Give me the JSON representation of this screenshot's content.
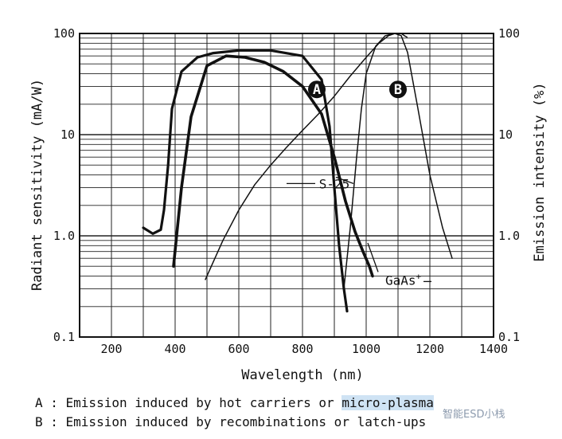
{
  "chart_data": {
    "type": "line",
    "xlabel": "Wavelength (nm)",
    "ylabel_left": "Radiant sensitivity (mA/W)",
    "ylabel_right": "Emission intensity (%)",
    "xlim": [
      100,
      1400
    ],
    "ylim": [
      0.1,
      100
    ],
    "yscale": "log",
    "grid": true,
    "x_ticks": [
      "200",
      "400",
      "600",
      "800",
      "1000",
      "1200",
      "1400"
    ],
    "y_ticks_left": [
      "0.1",
      "1.0",
      "10",
      "100"
    ],
    "y_ticks_right": [
      "0.1",
      "1.0",
      "10",
      "100"
    ],
    "series": [
      {
        "name": "S-25",
        "x": [
          300,
          330,
          355,
          365,
          378,
          390,
          420,
          470,
          520,
          600,
          700,
          800,
          860,
          885,
          900,
          915,
          930,
          940
        ],
        "y": [
          1.2,
          1.05,
          1.15,
          1.8,
          5,
          18,
          42,
          58,
          64,
          68,
          68,
          60,
          35,
          12,
          3,
          0.8,
          0.3,
          0.18
        ]
      },
      {
        "name": "A",
        "x": [
          395,
          420,
          450,
          500,
          560,
          620,
          680,
          740,
          800,
          860,
          900,
          935,
          965,
          990,
          1010,
          1020
        ],
        "y": [
          0.5,
          3,
          15,
          48,
          60,
          58,
          52,
          42,
          30,
          16,
          6,
          2.2,
          1.1,
          0.7,
          0.5,
          0.4
        ]
      },
      {
        "name": "B",
        "x": [
          495,
          550,
          600,
          650,
          700,
          750,
          800,
          850,
          900,
          950,
          1000,
          1040,
          1070,
          1090,
          1110,
          1130,
          1160,
          1200,
          1240,
          1270
        ],
        "y": [
          0.37,
          0.9,
          1.8,
          3.2,
          5,
          7.5,
          11,
          16,
          24,
          38,
          58,
          80,
          95,
          100,
          95,
          65,
          20,
          4,
          1.2,
          0.6
        ]
      },
      {
        "name": "GaAs+",
        "x": [
          930,
          950,
          970,
          985,
          1000,
          1030,
          1060,
          1090,
          1110,
          1120,
          1128
        ],
        "y": [
          0.3,
          1.2,
          6,
          18,
          40,
          75,
          95,
          100,
          100,
          95,
          92
        ]
      }
    ],
    "annotations": [
      {
        "text": "A",
        "at": [
          845,
          28
        ]
      },
      {
        "text": "B",
        "at": [
          1100,
          28
        ]
      },
      {
        "text": "S-25",
        "at": [
          850,
          3
        ]
      },
      {
        "text": "GaAs",
        "sup": "+",
        "at": [
          1100,
          0.38
        ]
      }
    ]
  },
  "captions": {
    "a_prefix": "A : Emission induced by hot carriers or ",
    "a_highlight": "micro-plasma",
    "b_text": "B : Emission induced by recombinations or latch-ups"
  },
  "watermark": "智能ESD小栈"
}
